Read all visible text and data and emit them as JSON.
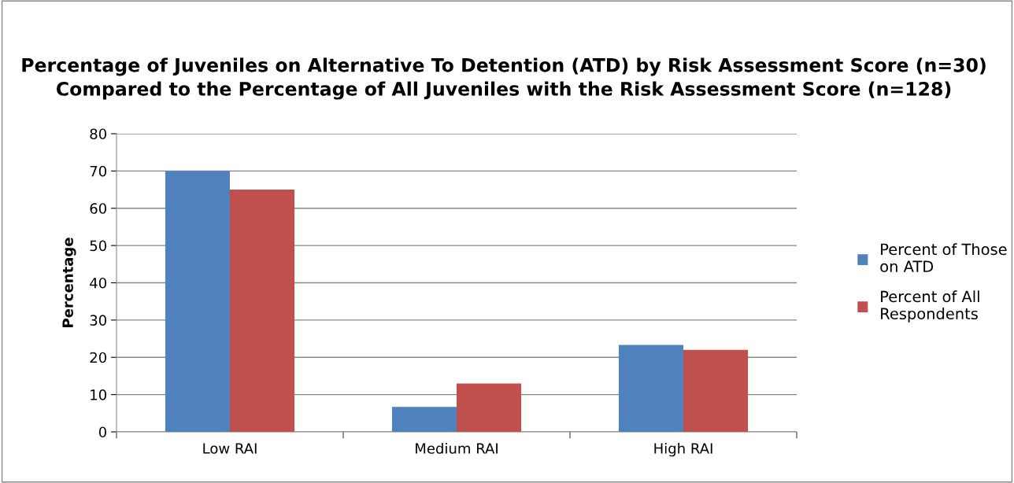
{
  "chart_data": {
    "type": "bar",
    "title": "Percentage of Juveniles on Alternative To Detention (ATD) by Risk Assessment Score (n=30) Compared to the Percentage of All Juveniles with the Risk Assessment Score (n=128)",
    "ylabel": "Percentage",
    "categories": [
      "Low RAI",
      "Medium RAI",
      "High RAI"
    ],
    "series": [
      {
        "name": "Percent of Those on ATD",
        "color": "#4f81bd",
        "values": [
          70,
          6.7,
          23.3
        ]
      },
      {
        "name": "Percent of All Respondents",
        "color": "#c0504d",
        "values": [
          65,
          13,
          22
        ]
      }
    ],
    "ylim": [
      0,
      80
    ],
    "yticks": [
      0,
      10,
      20,
      30,
      40,
      50,
      60,
      70,
      80
    ],
    "grid": "y",
    "legend": "right"
  }
}
